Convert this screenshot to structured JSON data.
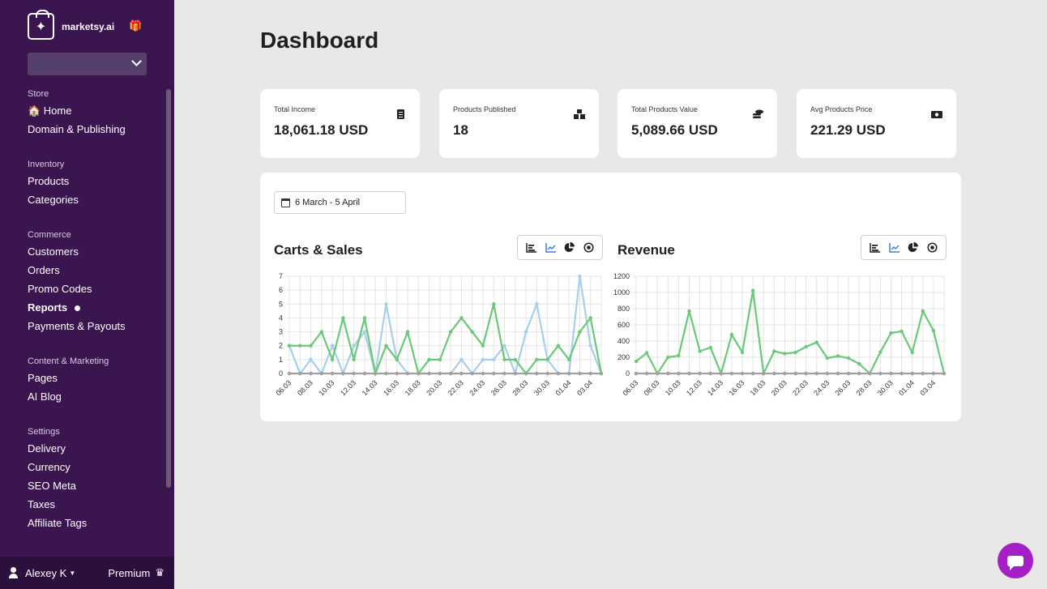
{
  "app": {
    "name": "marketsy.ai"
  },
  "sidebar": {
    "sections": [
      {
        "title": "Store",
        "items": [
          {
            "label": "🏠 Home"
          },
          {
            "label": "Domain & Publishing"
          }
        ]
      },
      {
        "title": "Inventory",
        "items": [
          {
            "label": "Products"
          },
          {
            "label": "Categories"
          }
        ]
      },
      {
        "title": "Commerce",
        "items": [
          {
            "label": "Customers"
          },
          {
            "label": "Orders"
          },
          {
            "label": "Promo Codes"
          },
          {
            "label": "Reports",
            "active": true
          },
          {
            "label": "Payments & Payouts"
          }
        ]
      },
      {
        "title": "Content & Marketing",
        "items": [
          {
            "label": "Pages"
          },
          {
            "label": "AI Blog"
          }
        ]
      },
      {
        "title": "Settings",
        "items": [
          {
            "label": "Delivery"
          },
          {
            "label": "Currency"
          },
          {
            "label": "SEO Meta"
          },
          {
            "label": "Taxes"
          },
          {
            "label": "Affiliate Tags"
          }
        ]
      }
    ],
    "user": {
      "name": "Alexey K",
      "plan": "Premium"
    }
  },
  "page": {
    "title": "Dashboard"
  },
  "stats": [
    {
      "label": "Total Income",
      "value": "18,061.18 USD",
      "icon": "receipt-icon"
    },
    {
      "label": "Products Published",
      "value": "18",
      "icon": "boxes-icon"
    },
    {
      "label": "Total Products Value",
      "value": "5,089.66 USD",
      "icon": "coins-icon"
    },
    {
      "label": "Avg Products Price",
      "value": "221.29 USD",
      "icon": "money-bill-icon"
    }
  ],
  "date_range": "6 March - 5 April",
  "colors": {
    "sidebar": "#3a1550",
    "green": "#6ac879",
    "blue": "#a8cfe9",
    "gray": "#a0a0a0",
    "accent": "#a41fc5",
    "toolActive": "#3b7de0"
  },
  "chart_data": [
    {
      "type": "line",
      "title": "Carts & Sales",
      "x": [
        "06.03",
        "07.03",
        "08.03",
        "09.03",
        "10.03",
        "11.03",
        "12.03",
        "13.03",
        "14.03",
        "15.03",
        "16.03",
        "17.03",
        "18.03",
        "19.03",
        "20.03",
        "21.03",
        "22.03",
        "23.03",
        "24.03",
        "25.03",
        "26.03",
        "27.03",
        "28.03",
        "29.03",
        "30.03",
        "31.03",
        "01.04",
        "02.04",
        "03.04",
        "04.04"
      ],
      "tick_labels": [
        "06.03",
        "08.03",
        "10.03",
        "12.03",
        "14.03",
        "16.03",
        "18.03",
        "20.03",
        "22.03",
        "24.03",
        "26.03",
        "28.03",
        "30.03",
        "01.04",
        "03.04"
      ],
      "ylim": [
        0,
        7
      ],
      "yticks": [
        0,
        1,
        2,
        3,
        4,
        5,
        6,
        7
      ],
      "grid": true,
      "series": [
        {
          "color": "#a8cfe9",
          "values": [
            2,
            0,
            1,
            0,
            2,
            0,
            2,
            3,
            0,
            5,
            1,
            0,
            0,
            0,
            0,
            0,
            1,
            0,
            1,
            1,
            2,
            0,
            3,
            5,
            1,
            0,
            0,
            7,
            2,
            0
          ]
        },
        {
          "color": "#6ac879",
          "values": [
            2,
            2,
            2,
            3,
            1,
            4,
            1,
            4,
            0,
            2,
            1,
            3,
            0,
            1,
            1,
            3,
            4,
            3,
            2,
            5,
            1,
            1,
            0,
            1,
            1,
            2,
            1,
            3,
            4,
            0
          ]
        },
        {
          "color": "#a0a0a0",
          "values": [
            0,
            0,
            0,
            0,
            0,
            0,
            0,
            0,
            0,
            0,
            0,
            0,
            0,
            0,
            0,
            0,
            0,
            0,
            0,
            0,
            0,
            0,
            0,
            0,
            0,
            0,
            0,
            0,
            0,
            0
          ]
        }
      ]
    },
    {
      "type": "line",
      "title": "Revenue",
      "x": [
        "06.03",
        "07.03",
        "08.03",
        "09.03",
        "10.03",
        "11.03",
        "12.03",
        "13.03",
        "14.03",
        "15.03",
        "16.03",
        "17.03",
        "18.03",
        "19.03",
        "20.03",
        "21.03",
        "22.03",
        "23.03",
        "24.03",
        "25.03",
        "26.03",
        "27.03",
        "28.03",
        "29.03",
        "30.03",
        "31.03",
        "01.04",
        "02.04",
        "03.04",
        "04.04"
      ],
      "tick_labels": [
        "06.03",
        "08.03",
        "10.03",
        "12.03",
        "14.03",
        "16.03",
        "18.03",
        "20.03",
        "22.03",
        "24.03",
        "26.03",
        "28.03",
        "30.03",
        "01.04",
        "03.04"
      ],
      "ylim": [
        0,
        1200
      ],
      "yticks": [
        0,
        200,
        400,
        600,
        800,
        1000,
        1200
      ],
      "grid": true,
      "series": [
        {
          "color": "#6ac879",
          "values": [
            150,
            255,
            0,
            200,
            220,
            770,
            275,
            320,
            0,
            480,
            260,
            1025,
            0,
            275,
            245,
            260,
            330,
            385,
            190,
            215,
            190,
            120,
            0,
            265,
            500,
            520,
            260,
            770,
            530,
            0
          ]
        },
        {
          "color": "#a0a0a0",
          "values": [
            0,
            0,
            0,
            0,
            0,
            0,
            0,
            0,
            0,
            0,
            0,
            0,
            0,
            0,
            0,
            0,
            0,
            0,
            0,
            0,
            0,
            0,
            0,
            0,
            0,
            0,
            0,
            0,
            0,
            0
          ]
        }
      ]
    }
  ]
}
